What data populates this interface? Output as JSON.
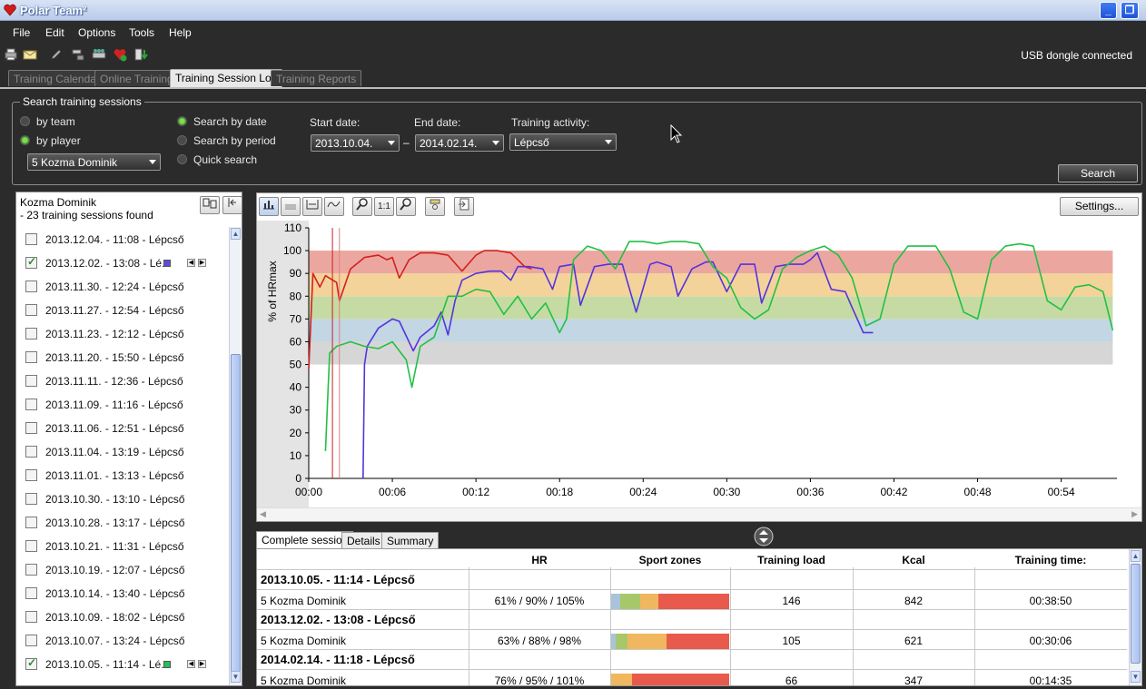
{
  "window": {
    "title": "Polar Team²"
  },
  "menu": [
    "File",
    "Edit",
    "Options",
    "Tools",
    "Help"
  ],
  "toolbar": {
    "usb_status": "USB dongle connected"
  },
  "tabs": [
    "Training Calendar",
    "Online Training",
    "Training Session Log",
    "Training Reports"
  ],
  "search": {
    "legend": "Search training sessions",
    "by_team": "by team",
    "by_player": "by player",
    "player_value": "5 Kozma Dominik",
    "search_by_date": "Search by date",
    "search_by_period": "Search by period",
    "quick_search": "Quick search",
    "start_label": "Start date:",
    "start_value": "2013.10.04.",
    "end_label": "End date:",
    "end_value": "2014.02.14.",
    "separator": "–",
    "activity_label": "Training activity:",
    "activity_value": "Lépcső",
    "search_button": "Search"
  },
  "sessions": {
    "player": "Kozma Dominik",
    "found": "- 23 training sessions found",
    "items": [
      {
        "label": "2013.12.04. - 11:08 - Lépcső",
        "checked": false
      },
      {
        "label": "2013.12.02. - 13:08 - Lé...",
        "checked": true,
        "color": "#5b4bdc"
      },
      {
        "label": "2013.11.30. - 12:24 - Lépcső",
        "checked": false
      },
      {
        "label": "2013.11.27. - 12:54 - Lépcső",
        "checked": false
      },
      {
        "label": "2013.11.23. - 12:12 - Lépcső",
        "checked": false
      },
      {
        "label": "2013.11.20. - 15:50 - Lépcső",
        "checked": false
      },
      {
        "label": "2013.11.11. - 12:36 - Lépcső",
        "checked": false
      },
      {
        "label": "2013.11.09. - 11:16 - Lépcső",
        "checked": false
      },
      {
        "label": "2013.11.06. - 12:51 - Lépcső",
        "checked": false
      },
      {
        "label": "2013.11.04. - 13:19 - Lépcső",
        "checked": false
      },
      {
        "label": "2013.11.01. - 13:13 - Lépcső",
        "checked": false
      },
      {
        "label": "2013.10.30. - 13:10 - Lépcső",
        "checked": false
      },
      {
        "label": "2013.10.28. - 13:17 - Lépcső",
        "checked": false
      },
      {
        "label": "2013.10.21. - 11:31 - Lépcső",
        "checked": false
      },
      {
        "label": "2013.10.19. - 12:07 - Lépcső",
        "checked": false
      },
      {
        "label": "2013.10.14. - 13:40 - Lépcső",
        "checked": false
      },
      {
        "label": "2013.10.09. - 18:02 - Lépcső",
        "checked": false
      },
      {
        "label": "2013.10.07. - 13:24 - Lépcső",
        "checked": false
      },
      {
        "label": "2013.10.05. - 11:14 - Lé...",
        "checked": true,
        "color": "#22c05a"
      }
    ]
  },
  "chart_toolbar": {
    "one_to_one": "1:1",
    "settings": "Settings..."
  },
  "chart_data": {
    "type": "line",
    "xlabel": "",
    "ylabel": "% of HRmax",
    "y_ticks": [
      0,
      10,
      20,
      30,
      40,
      50,
      60,
      70,
      80,
      90,
      100,
      110
    ],
    "x_ticks": [
      "00:00",
      "00:06",
      "00:12",
      "00:18",
      "00:24",
      "00:30",
      "00:36",
      "00:42",
      "00:48",
      "00:54"
    ],
    "xlim_minutes": [
      0,
      58
    ],
    "ylim": [
      0,
      110
    ],
    "zones": [
      {
        "from": 50,
        "to": 60,
        "color": "#d6d6d6"
      },
      {
        "from": 60,
        "to": 70,
        "color": "#c2d6e3"
      },
      {
        "from": 70,
        "to": 80,
        "color": "#c6dba3"
      },
      {
        "from": 80,
        "to": 90,
        "color": "#f3d39a"
      },
      {
        "from": 90,
        "to": 100,
        "color": "#eba79f"
      }
    ],
    "series": [
      {
        "color": "#d42020",
        "x": [
          0,
          0.3,
          0.8,
          1.2,
          2,
          2.2,
          3,
          4,
          5,
          5.6,
          6,
          6.5,
          7.2,
          8,
          9,
          10,
          11,
          12,
          12.6,
          13.5,
          14.5,
          15.5,
          16
        ],
        "y": [
          48,
          90,
          84,
          89,
          86,
          78,
          92,
          97,
          98,
          96,
          97,
          88,
          96,
          99,
          99,
          98,
          91,
          98,
          100,
          100,
          99,
          93,
          92
        ]
      },
      {
        "color": "#5533dd",
        "x": [
          3.9,
          4,
          4.2,
          5,
          6,
          6.5,
          7.5,
          8,
          9,
          9.5,
          10,
          10.5,
          11,
          12,
          13,
          13.8,
          14.5,
          15,
          15.8,
          16.8,
          17.5,
          18,
          19,
          19.5,
          20.5,
          21.5,
          22.5,
          23.5,
          24.5,
          25,
          26,
          26.5,
          27.5,
          28.5,
          29,
          30,
          31,
          32,
          32.5,
          33.5,
          34.5,
          35.5,
          36,
          36.5,
          37.5,
          38.5,
          39,
          39.8,
          40.5
        ],
        "y": [
          0,
          50,
          58,
          66,
          70,
          69,
          56,
          62,
          67,
          73,
          63,
          78,
          87,
          90,
          91,
          91,
          87,
          93,
          93,
          92,
          83,
          93,
          94,
          76,
          93,
          94,
          94,
          73,
          94,
          95,
          93,
          80,
          92,
          95,
          95,
          82,
          94,
          94,
          77,
          93,
          94,
          94,
          96,
          99,
          83,
          82,
          75,
          64,
          64
        ]
      },
      {
        "color": "#22c044",
        "x": [
          1.2,
          1.5,
          2,
          3,
          4,
          5,
          6,
          7,
          7.4,
          8,
          9,
          10,
          11,
          12,
          13,
          14,
          15,
          16,
          17,
          18,
          18.5,
          19,
          20,
          21,
          22,
          23,
          24,
          25,
          26,
          27,
          28,
          29,
          30,
          31,
          32,
          33,
          34,
          35,
          36,
          37,
          38,
          39,
          40,
          41,
          42,
          43,
          44,
          45,
          46,
          47,
          48,
          49,
          50,
          51,
          52,
          53,
          54,
          55,
          56,
          57,
          57.7
        ],
        "y": [
          12,
          55,
          58,
          60,
          58,
          57,
          60,
          52,
          40,
          58,
          62,
          80,
          80,
          83,
          82,
          72,
          80,
          70,
          77,
          64,
          70,
          96,
          102,
          100,
          92,
          104,
          104,
          103,
          104,
          104,
          103,
          93,
          88,
          75,
          70,
          74,
          92,
          97,
          100,
          102,
          98,
          88,
          67,
          70,
          94,
          102,
          102,
          102,
          92,
          73,
          70,
          96,
          102,
          103,
          102,
          78,
          74,
          84,
          85,
          82,
          65
        ]
      }
    ]
  },
  "bottom_tabs": [
    "Complete session",
    "Details",
    "Summary"
  ],
  "table": {
    "headers": [
      "HR",
      "Sport zones",
      "Training load",
      "Kcal",
      "Training time:"
    ],
    "groups": [
      {
        "title": "2013.10.05. - 11:14 - Lépcső",
        "player": "5 Kozma Dominik",
        "hr": "61% / 90% / 105%",
        "zones": [
          8,
          17,
          15,
          60
        ],
        "load": "146",
        "kcal": "842",
        "time": "00:38:50"
      },
      {
        "title": "2013.12.02. - 13:08 - Lépcső",
        "player": "5 Kozma Dominik",
        "hr": "63% / 88% / 98%",
        "zones": [
          4,
          10,
          33,
          53
        ],
        "load": "105",
        "kcal": "621",
        "time": "00:30:06"
      },
      {
        "title": "2014.02.14. - 11:18 - Lépcső",
        "player": "5 Kozma Dominik",
        "hr": "76% / 95% / 101%",
        "zones": [
          0,
          0,
          18,
          82
        ],
        "load": "66",
        "kcal": "347",
        "time": "00:14:35"
      }
    ],
    "zone_colors": [
      "#a9c4da",
      "#a6c86a",
      "#f0b75e",
      "#e85a4b"
    ]
  }
}
